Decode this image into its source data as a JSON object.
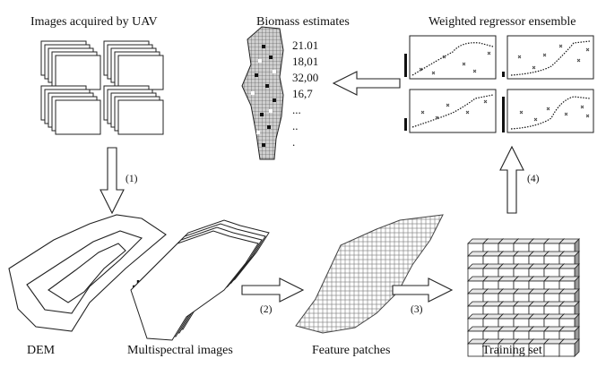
{
  "labels": {
    "uav_images": "Images acquired by UAV",
    "biomass": "Biomass estimates",
    "ensemble": "Weighted regressor ensemble",
    "dem": "DEM",
    "multispectral": "Multispectral images",
    "feature_patches": "Feature patches",
    "training_set": "Training set"
  },
  "biomass_values": [
    "21.01",
    "18,01",
    "32,00",
    "16,7",
    "...",
    "..",
    "."
  ],
  "steps": {
    "s1": "(1)",
    "s2": "(2)",
    "s3": "(3)",
    "s4": "(4)"
  },
  "plus_symbol": "+"
}
